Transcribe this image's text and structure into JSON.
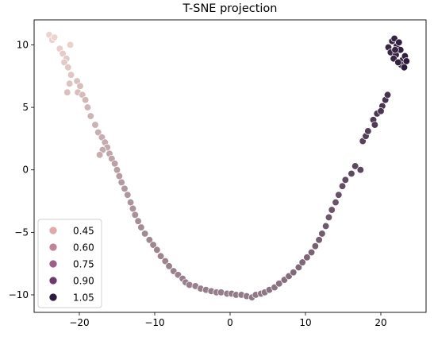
{
  "chart_data": {
    "type": "scatter",
    "title": "T-SNE projection",
    "xlabel": "",
    "ylabel": "",
    "xlim": [
      -26,
      26
    ],
    "ylim": [
      -11.4,
      12
    ],
    "x_ticks": [
      -20,
      -10,
      0,
      10,
      20
    ],
    "x_tick_labels": [
      "−20",
      "−10",
      "0",
      "10",
      "20"
    ],
    "y_ticks": [
      -10,
      -5,
      0,
      5,
      10
    ],
    "y_tick_labels": [
      "−10",
      "−5",
      "0",
      "5",
      "10"
    ],
    "grid": false,
    "legend_position": "lower-left",
    "legend": [
      {
        "label": "0.45",
        "value": 0.45,
        "color": "#dfa9ac"
      },
      {
        "label": "0.60",
        "value": 0.6,
        "color": "#c1839a"
      },
      {
        "label": "0.75",
        "value": 0.75,
        "color": "#9d5e89"
      },
      {
        "label": "0.90",
        "value": 0.9,
        "color": "#6b3b6e"
      },
      {
        "label": "1.05",
        "value": 1.05,
        "color": "#2d1a3e"
      }
    ],
    "color_range": {
      "min": 0.3,
      "max": 1.1,
      "low_color": "#f0d6d0",
      "high_color": "#2a1738"
    },
    "points": [
      [
        -24,
        10.8,
        0.31
      ],
      [
        -23.6,
        10.4,
        0.32
      ],
      [
        -23.3,
        10.6,
        0.31
      ],
      [
        -22.6,
        9.7,
        0.33
      ],
      [
        -22.2,
        9.3,
        0.34
      ],
      [
        -21.2,
        10.0,
        0.32
      ],
      [
        -21.7,
        8.9,
        0.35
      ],
      [
        -22.0,
        8.6,
        0.35
      ],
      [
        -21.5,
        8.2,
        0.36
      ],
      [
        -21.1,
        7.6,
        0.37
      ],
      [
        -21.3,
        6.9,
        0.38
      ],
      [
        -21.6,
        6.2,
        0.39
      ],
      [
        -20.3,
        7.1,
        0.39
      ],
      [
        -19.9,
        6.7,
        0.4
      ],
      [
        -20.2,
        6.2,
        0.4
      ],
      [
        -19.6,
        6.0,
        0.41
      ],
      [
        -19.2,
        5.6,
        0.42
      ],
      [
        -18.9,
        5.0,
        0.43
      ],
      [
        -18.5,
        4.3,
        0.44
      ],
      [
        -17.9,
        3.6,
        0.45
      ],
      [
        -17.5,
        3.0,
        0.46
      ],
      [
        -17.0,
        2.6,
        0.47
      ],
      [
        -16.6,
        2.2,
        0.48
      ],
      [
        -16.3,
        1.8,
        0.49
      ],
      [
        -16.9,
        1.6,
        0.48
      ],
      [
        -17.3,
        1.2,
        0.47
      ],
      [
        -16.0,
        1.3,
        0.5
      ],
      [
        -15.7,
        0.9,
        0.51
      ],
      [
        -15.3,
        0.5,
        0.52
      ],
      [
        -15.0,
        0.0,
        0.53
      ],
      [
        -14.7,
        -0.5,
        0.54
      ],
      [
        -14.4,
        -1.0,
        0.55
      ],
      [
        -14.0,
        -1.5,
        0.56
      ],
      [
        -13.6,
        -2.0,
        0.57
      ],
      [
        -13.2,
        -2.6,
        0.58
      ],
      [
        -12.9,
        -3.1,
        0.58
      ],
      [
        -12.6,
        -3.6,
        0.59
      ],
      [
        -12.2,
        -4.1,
        0.6
      ],
      [
        -11.8,
        -4.6,
        0.61
      ],
      [
        -11.3,
        -5.1,
        0.62
      ],
      [
        -10.7,
        -5.6,
        0.63
      ],
      [
        -10.2,
        -6.0,
        0.63
      ],
      [
        -9.7,
        -6.4,
        0.64
      ],
      [
        -9.2,
        -6.9,
        0.64
      ],
      [
        -8.6,
        -7.3,
        0.64
      ],
      [
        -8.1,
        -7.7,
        0.65
      ],
      [
        -7.5,
        -8.1,
        0.65
      ],
      [
        -6.9,
        -8.4,
        0.65
      ],
      [
        -6.3,
        -8.7,
        0.66
      ],
      [
        -5.9,
        -9.0,
        0.66
      ],
      [
        -5.4,
        -9.2,
        0.66
      ],
      [
        -4.6,
        -9.3,
        0.66
      ],
      [
        -3.9,
        -9.5,
        0.66
      ],
      [
        -3.2,
        -9.6,
        0.67
      ],
      [
        -2.5,
        -9.7,
        0.67
      ],
      [
        -1.8,
        -9.8,
        0.67
      ],
      [
        -1.2,
        -9.8,
        0.67
      ],
      [
        -0.4,
        -9.9,
        0.67
      ],
      [
        0.2,
        -9.9,
        0.68
      ],
      [
        0.8,
        -10.0,
        0.68
      ],
      [
        1.5,
        -10.0,
        0.68
      ],
      [
        2.2,
        -10.1,
        0.68
      ],
      [
        2.9,
        -10.2,
        0.69
      ],
      [
        3.4,
        -10.0,
        0.69
      ],
      [
        4.1,
        -9.9,
        0.7
      ],
      [
        4.6,
        -9.8,
        0.7
      ],
      [
        5.2,
        -9.6,
        0.71
      ],
      [
        5.9,
        -9.4,
        0.71
      ],
      [
        6.5,
        -9.1,
        0.72
      ],
      [
        7.2,
        -8.8,
        0.73
      ],
      [
        7.8,
        -8.5,
        0.74
      ],
      [
        8.4,
        -8.2,
        0.75
      ],
      [
        9.1,
        -7.8,
        0.76
      ],
      [
        9.6,
        -7.4,
        0.76
      ],
      [
        10.2,
        -7.0,
        0.77
      ],
      [
        10.8,
        -6.6,
        0.78
      ],
      [
        11.3,
        -6.1,
        0.79
      ],
      [
        11.8,
        -5.6,
        0.8
      ],
      [
        12.2,
        -5.1,
        0.81
      ],
      [
        12.7,
        -4.5,
        0.82
      ],
      [
        13.1,
        -3.8,
        0.83
      ],
      [
        13.5,
        -3.2,
        0.84
      ],
      [
        14.0,
        -2.6,
        0.85
      ],
      [
        14.4,
        -2.0,
        0.86
      ],
      [
        14.9,
        -1.3,
        0.87
      ],
      [
        15.3,
        -0.8,
        0.88
      ],
      [
        16.1,
        -0.3,
        0.89
      ],
      [
        16.6,
        0.3,
        0.9
      ],
      [
        17.3,
        0.0,
        0.9
      ],
      [
        17.6,
        2.3,
        0.92
      ],
      [
        18.0,
        2.7,
        0.93
      ],
      [
        18.3,
        3.1,
        0.93
      ],
      [
        19.0,
        4.0,
        0.95
      ],
      [
        19.5,
        4.5,
        0.96
      ],
      [
        19.2,
        3.6,
        0.95
      ],
      [
        20.2,
        5.1,
        0.97
      ],
      [
        20.6,
        5.6,
        0.98
      ],
      [
        20.9,
        6.0,
        0.98
      ],
      [
        20.0,
        4.7,
        0.97
      ],
      [
        21.0,
        9.8,
        1.03
      ],
      [
        21.3,
        9.4,
        1.03
      ],
      [
        21.5,
        10.3,
        1.04
      ],
      [
        21.8,
        10.5,
        1.05
      ],
      [
        22.1,
        9.9,
        1.05
      ],
      [
        22.4,
        10.2,
        1.06
      ],
      [
        22.0,
        9.2,
        1.05
      ],
      [
        22.6,
        9.6,
        1.06
      ],
      [
        22.9,
        8.8,
        1.07
      ],
      [
        23.2,
        9.1,
        1.07
      ],
      [
        22.7,
        8.4,
        1.07
      ],
      [
        23.1,
        8.2,
        1.08
      ],
      [
        21.7,
        8.9,
        1.04
      ],
      [
        22.3,
        8.6,
        1.06
      ],
      [
        23.4,
        8.7,
        1.08
      ],
      [
        21.9,
        9.6,
        1.04
      ]
    ]
  }
}
